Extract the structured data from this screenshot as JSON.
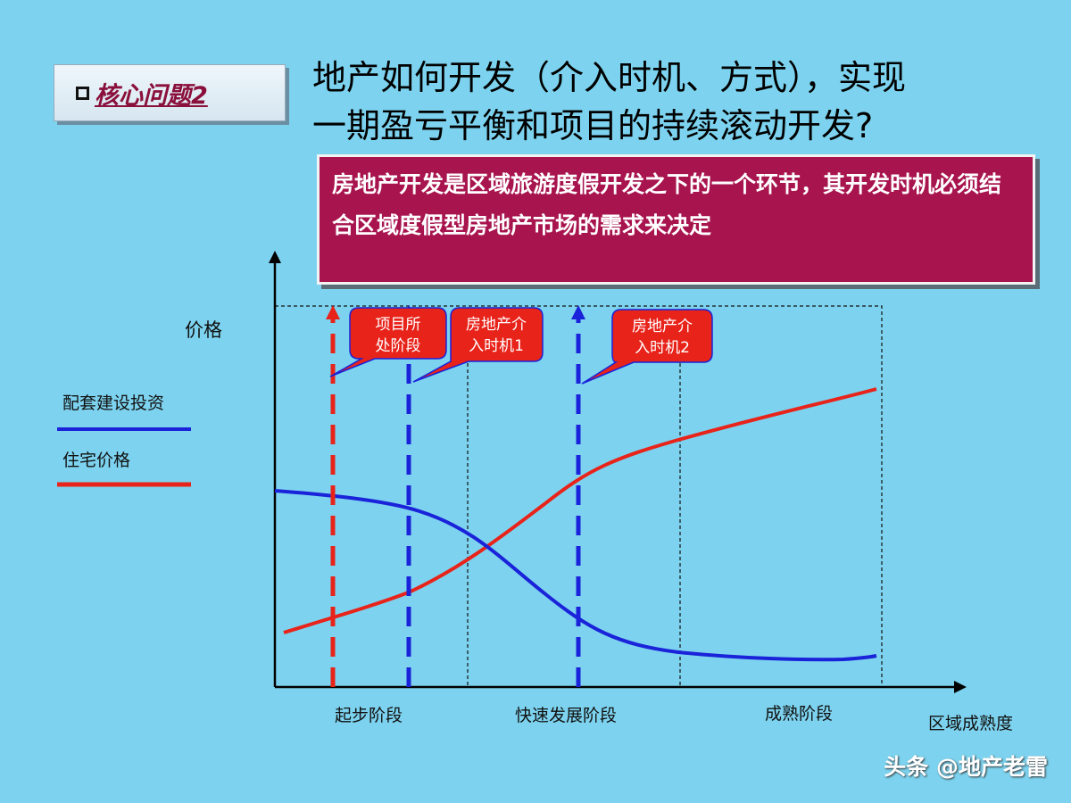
{
  "badge": {
    "label": "核心问题2"
  },
  "title": {
    "line1": "地产如何开发（介入时机、方式），实现",
    "line2": "一期盈亏平衡和项目的持续滚动开发?"
  },
  "callout": {
    "text": "房地产开发是区域旅游度假开发之下的一个环节，其开发时机必须结合区域度假型房地产市场的需求来决定"
  },
  "diagram": {
    "y_axis_label": "价格",
    "x_axis_label": "区域成熟度",
    "legend": [
      {
        "label": "配套建设投资",
        "color": "#1a23d9"
      },
      {
        "label": "住宅价格",
        "color": "#e8231a"
      }
    ],
    "stages": [
      "起步阶段",
      "快速发展阶段",
      "成熟阶段"
    ],
    "bubbles": [
      {
        "line1": "项目所",
        "line2": "处阶段"
      },
      {
        "line1": "房地产介",
        "line2": "入时机1"
      },
      {
        "line1": "房地产介",
        "line2": "入时机2"
      }
    ]
  },
  "watermark": "头条 @地产老雷"
}
